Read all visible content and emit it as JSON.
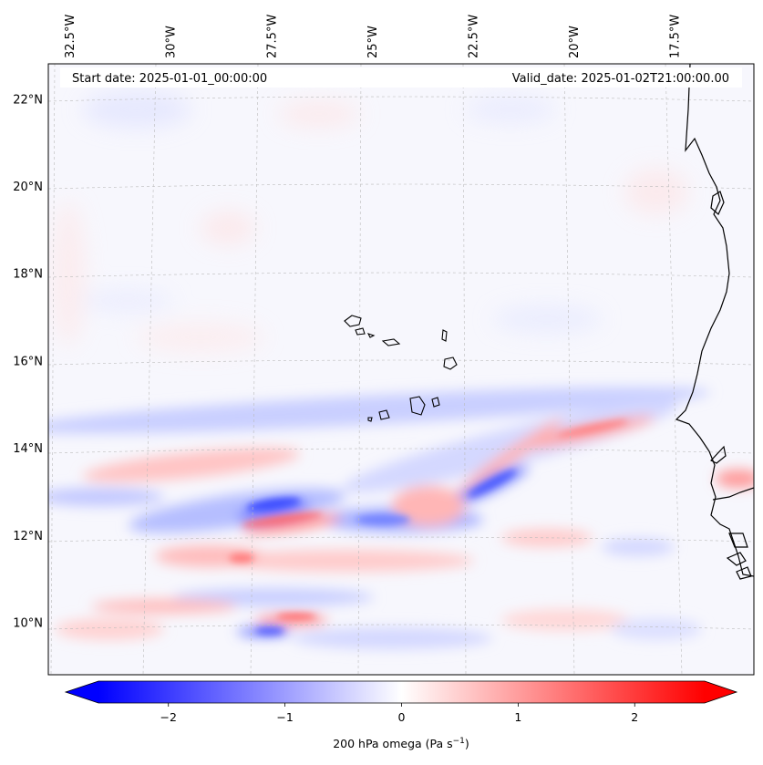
{
  "header": {
    "start_date": "Start date: 2025-01-01_00:00:00",
    "valid_date": "Valid_date: 2025-01-02T21:00:00.00"
  },
  "map": {
    "lon_range": [
      -33.0,
      -15.5
    ],
    "lat_range": [
      8.8,
      22.8
    ],
    "lon_ticks": [
      {
        "value": -32.5,
        "label": "32.5°W"
      },
      {
        "value": -30.0,
        "label": "30°W"
      },
      {
        "value": -27.5,
        "label": "27.5°W"
      },
      {
        "value": -25.0,
        "label": "25°W"
      },
      {
        "value": -22.5,
        "label": "22.5°W"
      },
      {
        "value": -20.0,
        "label": "20°W"
      },
      {
        "value": -17.5,
        "label": "17.5°W"
      }
    ],
    "lat_ticks": [
      {
        "value": 10,
        "label": "10°N"
      },
      {
        "value": 12,
        "label": "12°N"
      },
      {
        "value": 14,
        "label": "14°N"
      },
      {
        "value": 16,
        "label": "16°N"
      },
      {
        "value": 18,
        "label": "18°N"
      },
      {
        "value": 20,
        "label": "20°N"
      },
      {
        "value": 22,
        "label": "22°N"
      }
    ]
  },
  "colorbar": {
    "min": -2.6,
    "max": 2.6,
    "ticks": [
      {
        "value": -2,
        "label": "−2"
      },
      {
        "value": -1,
        "label": "−1"
      },
      {
        "value": 0,
        "label": "0"
      },
      {
        "value": 1,
        "label": "1"
      },
      {
        "value": 2,
        "label": "2"
      }
    ],
    "label": "200 hPa omega (Pa s",
    "label_exp": "−1",
    "label_close": ")",
    "colors": {
      "negative": "#0000ff",
      "zero": "#ffffff",
      "positive": "#ff0000"
    }
  }
}
